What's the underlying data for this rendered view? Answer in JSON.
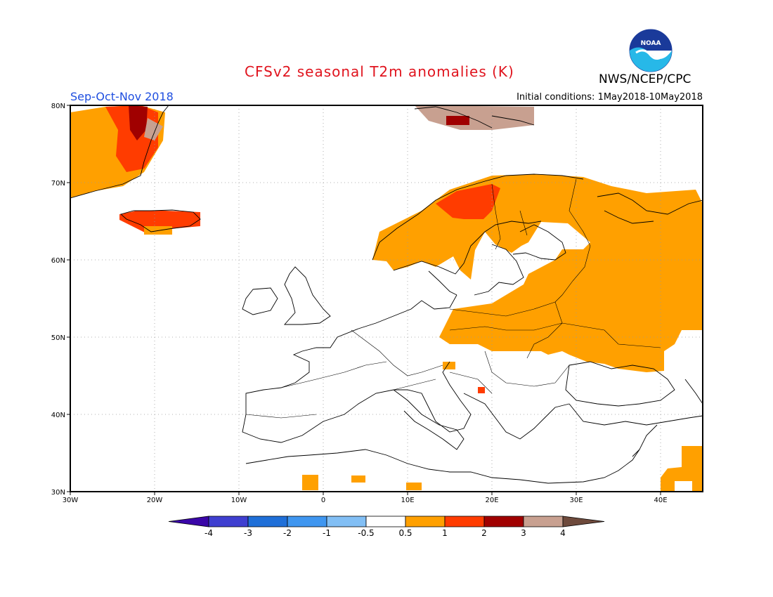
{
  "header": {
    "title": "CFSv2 seasonal T2m anomalies (K)",
    "season": "Sep-Oct-Nov 2018",
    "initial_conditions": "Initial conditions: 1May2018-10May2018",
    "agency": "NWS/NCEP/CPC",
    "logo_text": "NOAA"
  },
  "axes": {
    "lon_labels": [
      "30W",
      "20W",
      "10W",
      "0",
      "10E",
      "20E",
      "30E",
      "40E"
    ],
    "lat_labels": [
      "80N",
      "70N",
      "60N",
      "50N",
      "40N",
      "30N"
    ]
  },
  "colorbar": {
    "labels": [
      "-4",
      "-3",
      "-2",
      "-1",
      "-0.5",
      "0.5",
      "1",
      "2",
      "3",
      "4"
    ],
    "colors": [
      "#3a06a8",
      "#3f3fd0",
      "#1f6fd8",
      "#3f96f0",
      "#82bff5",
      "#ffffff",
      "#ffa000",
      "#ff3c00",
      "#a00000",
      "#c8a090",
      "#6e4a3c"
    ]
  }
}
